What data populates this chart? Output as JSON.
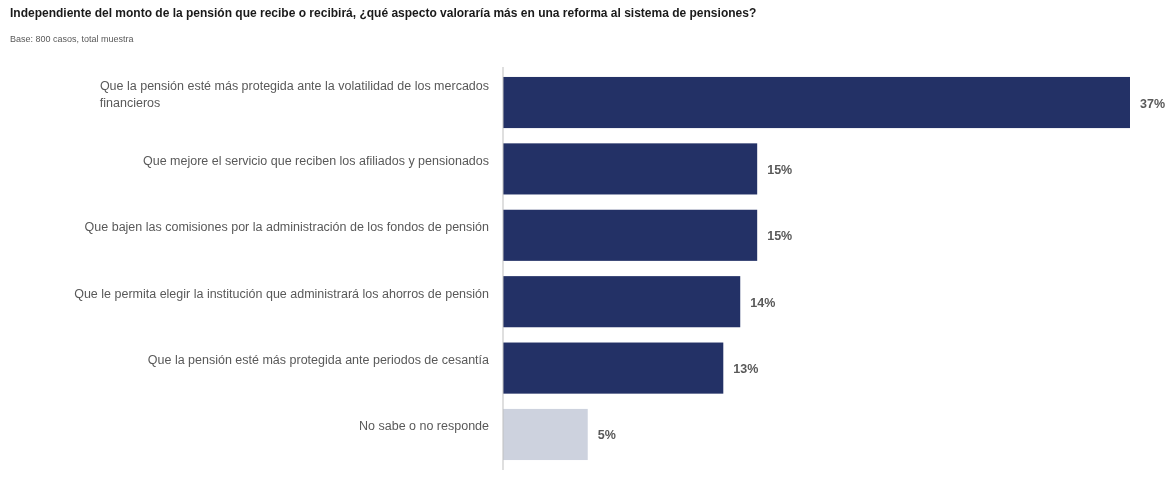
{
  "chart_data": {
    "type": "bar",
    "orientation": "horizontal",
    "title": "Independiente del monto de la pensión que recibe o recibirá, ¿qué aspecto valoraría más en una reforma al sistema de pensiones?",
    "subtitle": "Base: 800 casos, total muestra",
    "categories": [
      "Que la pensión esté más protegida ante la volatilidad de los mercados financieros",
      "Que mejore el servicio que reciben los afiliados y pensionados",
      "Que bajen las comisiones por la administración de los fondos de pensión",
      "Que le permita elegir la institución que administrará los ahorros de pensión",
      "Que la pensión esté más protegida ante periodos de cesantía",
      "No sabe o no responde"
    ],
    "values": [
      37,
      15,
      15,
      14,
      13,
      5
    ],
    "value_labels": [
      "37%",
      "15%",
      "15%",
      "14%",
      "13%",
      "5%"
    ],
    "colors": [
      "#233166",
      "#233166",
      "#233166",
      "#233166",
      "#233166",
      "#cdd2de"
    ],
    "xlim": [
      0,
      37
    ]
  }
}
